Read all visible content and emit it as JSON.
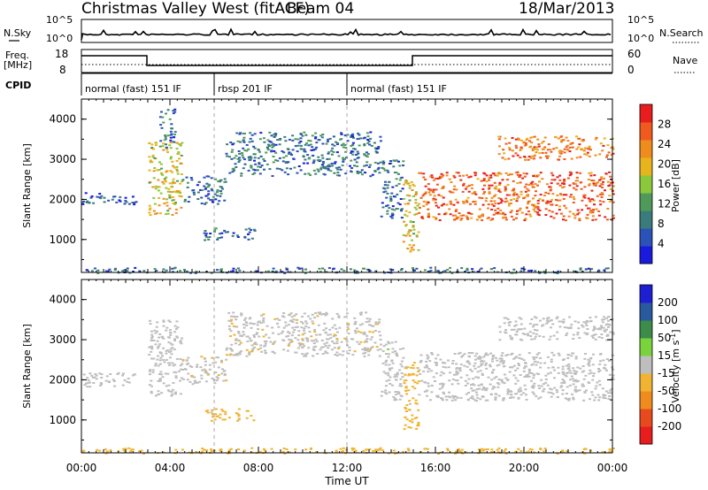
{
  "header": {
    "site": "Christmas Valley West (fitACF)",
    "beam": "Beam 04",
    "date": "18/Mar/2013"
  },
  "top_panels": {
    "nsky_label": "N.Sky",
    "nsearch_label": "N.Search",
    "noise_ticks": [
      "10^5",
      "10^0"
    ],
    "freq_label_line1": "Freq.",
    "freq_label_line2": "[MHz]",
    "freq_ticks": [
      "18",
      "8"
    ],
    "nave_label": "Nave",
    "nave_ticks": [
      "60",
      "0"
    ],
    "cpid_label": "CPID",
    "cpid_segments": [
      {
        "label": "normal (fast) 151 IF",
        "start_hour": 0,
        "end_hour": 6
      },
      {
        "label": "rbsp 201 IF",
        "start_hour": 6,
        "end_hour": 12
      },
      {
        "label": "normal (fast) 151 IF",
        "start_hour": 12,
        "end_hour": 24
      }
    ]
  },
  "chart_data": [
    {
      "type": "heatmap",
      "name": "power",
      "ylabel": "Slant Range [km]",
      "yticks": [
        1000,
        2000,
        3000,
        4000
      ],
      "ylim": [
        180,
        4500
      ],
      "xlim": [
        0,
        24
      ],
      "colorbar": {
        "label": "Power [dB]",
        "ticks": [
          4,
          8,
          12,
          16,
          20,
          24,
          28
        ],
        "range": [
          0,
          32
        ],
        "colors": [
          "#1a1adc",
          "#2a52b8",
          "#3a7c7c",
          "#4f9a5a",
          "#8cc83c",
          "#e8b41e",
          "#f08c1e",
          "#f05a1e",
          "#e81e1e"
        ]
      },
      "echo_regions": [
        {
          "start_hour": 0.0,
          "end_hour": 1.2,
          "range_km": [
            1900,
            2200
          ],
          "level": 0.15
        },
        {
          "start_hour": 1.2,
          "end_hour": 2.5,
          "range_km": [
            1850,
            2100
          ],
          "level": 0.15
        },
        {
          "start_hour": 3.0,
          "end_hour": 4.5,
          "range_km": [
            1600,
            3500
          ],
          "level": 0.6
        },
        {
          "start_hour": 3.5,
          "end_hour": 4.2,
          "range_km": [
            3300,
            4300
          ],
          "level": 0.2
        },
        {
          "start_hour": 4.5,
          "end_hour": 6.5,
          "range_km": [
            1900,
            2600
          ],
          "level": 0.2
        },
        {
          "start_hour": 5.5,
          "end_hour": 7.8,
          "range_km": [
            1000,
            1300
          ],
          "level": 0.15
        },
        {
          "start_hour": 6.5,
          "end_hour": 13.5,
          "range_km": [
            2600,
            3700
          ],
          "level": 0.22
        },
        {
          "start_hour": 13.5,
          "end_hour": 14.5,
          "range_km": [
            1500,
            3000
          ],
          "level": 0.2
        },
        {
          "start_hour": 14.5,
          "end_hour": 15.2,
          "range_km": [
            700,
            2500
          ],
          "level": 0.6
        },
        {
          "start_hour": 15.2,
          "end_hour": 24.0,
          "range_km": [
            1500,
            2700
          ],
          "level": 0.85
        },
        {
          "start_hour": 18.8,
          "end_hour": 24.0,
          "range_km": [
            3000,
            3600
          ],
          "level": 0.8
        },
        {
          "start_hour": 0.0,
          "end_hour": 24.0,
          "range_km": [
            180,
            320
          ],
          "level": 0.2
        }
      ]
    },
    {
      "type": "heatmap",
      "name": "velocity",
      "ylabel": "Slant Range [km]",
      "yticks": [
        1000,
        2000,
        3000,
        4000
      ],
      "ylim": [
        180,
        4500
      ],
      "xlabel": "Time UT",
      "xticks": [
        "00:00",
        "04:00",
        "08:00",
        "12:00",
        "16:00",
        "20:00",
        "00:00"
      ],
      "xlim": [
        0,
        24
      ],
      "colorbar": {
        "label": "Velocity [m s^-1]",
        "ticks": [
          200,
          100,
          50,
          15,
          -15,
          -50,
          -100,
          -200
        ],
        "range": [
          -250,
          250
        ],
        "colors": [
          "#1e1ed2",
          "#2a5a9e",
          "#3c8c4a",
          "#7ad23c",
          "#bebebe",
          "#f0b432",
          "#f08c1e",
          "#e84a1e",
          "#e81e1e"
        ]
      },
      "echo_regions": [
        {
          "start_hour": 0.0,
          "end_hour": 2.5,
          "range_km": [
            1850,
            2200
          ],
          "velocity": 0
        },
        {
          "start_hour": 3.0,
          "end_hour": 4.5,
          "range_km": [
            1600,
            3500
          ],
          "velocity": 0
        },
        {
          "start_hour": 4.5,
          "end_hour": 6.5,
          "range_km": [
            1900,
            2600
          ],
          "velocity": -30
        },
        {
          "start_hour": 5.5,
          "end_hour": 7.8,
          "range_km": [
            1000,
            1300
          ],
          "velocity": -60
        },
        {
          "start_hour": 6.5,
          "end_hour": 13.5,
          "range_km": [
            2600,
            3700
          ],
          "velocity": -30
        },
        {
          "start_hour": 13.5,
          "end_hour": 14.5,
          "range_km": [
            1500,
            3000
          ],
          "velocity": 10
        },
        {
          "start_hour": 14.5,
          "end_hour": 15.2,
          "range_km": [
            700,
            2500
          ],
          "velocity": -60
        },
        {
          "start_hour": 15.2,
          "end_hour": 24.0,
          "range_km": [
            1500,
            2700
          ],
          "velocity": 0
        },
        {
          "start_hour": 18.8,
          "end_hour": 24.0,
          "range_km": [
            3000,
            3600
          ],
          "velocity": 0
        },
        {
          "start_hour": 0.0,
          "end_hour": 24.0,
          "range_km": [
            180,
            320
          ],
          "velocity": -60
        }
      ]
    }
  ]
}
